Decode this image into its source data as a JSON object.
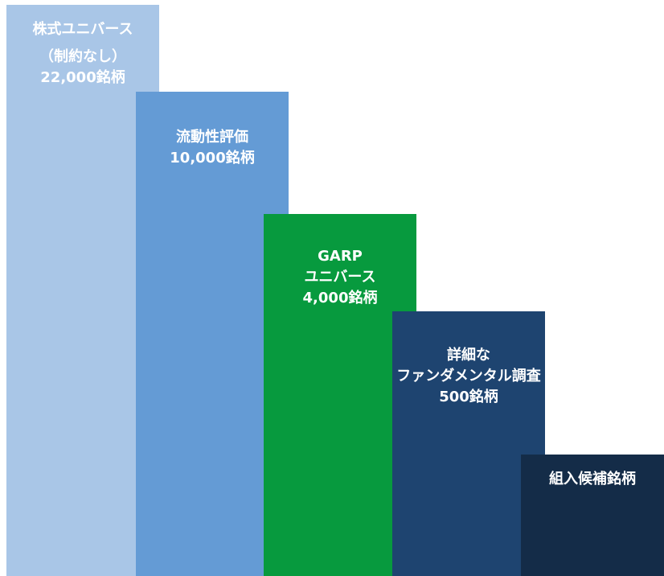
{
  "funnel": {
    "stages": [
      {
        "lines": [
          "株式ユニバース",
          "（制約なし）",
          "22,000銘柄"
        ],
        "color": "#a9c6e7"
      },
      {
        "lines": [
          "流動性評価",
          "10,000銘柄"
        ],
        "color": "#649bd5"
      },
      {
        "lines": [
          "GARP",
          "ユニバース",
          "4,000銘柄"
        ],
        "color": "#079a3e"
      },
      {
        "lines": [
          "詳細な",
          "ファンダメンタル調査",
          "500銘柄"
        ],
        "color": "#1e4470"
      },
      {
        "lines": [
          "組入候補銘柄"
        ],
        "color": "#142c48"
      }
    ]
  }
}
